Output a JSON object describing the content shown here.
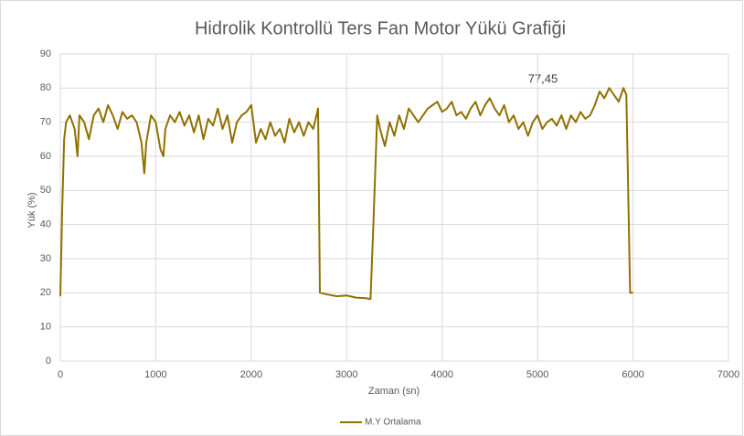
{
  "chart_data": {
    "type": "line",
    "title": "Hidrolik Kontrollü Ters Fan Motor Yükü Grafiği",
    "xlabel": "Zaman (sn)",
    "ylabel": "Yük (%)",
    "annotation": "77,45",
    "x": [
      0,
      20,
      40,
      60,
      100,
      150,
      180,
      200,
      250,
      300,
      350,
      400,
      450,
      500,
      550,
      600,
      650,
      700,
      750,
      800,
      850,
      880,
      900,
      950,
      1000,
      1050,
      1080,
      1100,
      1150,
      1200,
      1250,
      1300,
      1350,
      1400,
      1450,
      1500,
      1550,
      1600,
      1650,
      1700,
      1750,
      1800,
      1850,
      1900,
      1950,
      2000,
      2050,
      2100,
      2150,
      2200,
      2250,
      2300,
      2350,
      2400,
      2450,
      2500,
      2550,
      2600,
      2650,
      2700,
      2720,
      2800,
      2900,
      3000,
      3100,
      3200,
      3250,
      3280,
      3320,
      3350,
      3400,
      3450,
      3500,
      3550,
      3600,
      3650,
      3700,
      3750,
      3800,
      3850,
      3900,
      3950,
      4000,
      4050,
      4100,
      4150,
      4200,
      4250,
      4300,
      4350,
      4400,
      4450,
      4500,
      4550,
      4600,
      4650,
      4700,
      4750,
      4800,
      4850,
      4900,
      4950,
      5000,
      5050,
      5100,
      5150,
      5200,
      5250,
      5300,
      5350,
      5400,
      5450,
      5500,
      5550,
      5600,
      5650,
      5700,
      5750,
      5800,
      5850,
      5900,
      5930,
      5970,
      6000
    ],
    "series": [
      {
        "name": "M.Y Ortalama",
        "color": "#8f7100",
        "values": [
          19,
          45,
          65,
          70,
          72,
          68,
          60,
          72,
          70,
          65,
          72,
          74,
          70,
          75,
          72,
          68,
          73,
          71,
          72,
          70,
          64,
          55,
          64,
          72,
          70,
          62,
          60,
          68,
          72,
          70,
          73,
          69,
          72,
          67,
          72,
          65,
          71,
          69,
          74,
          68,
          72,
          64,
          70,
          72,
          73,
          75,
          64,
          68,
          65,
          70,
          66,
          68,
          64,
          71,
          67,
          70,
          66,
          70,
          68,
          74,
          20,
          19.5,
          19,
          19.2,
          18.6,
          18.4,
          18.2,
          40,
          72,
          68,
          63,
          70,
          66,
          72,
          68,
          74,
          72,
          70,
          72,
          74,
          75,
          76,
          73,
          74,
          76,
          72,
          73,
          71,
          74,
          76,
          72,
          75,
          77,
          74,
          72,
          75,
          70,
          72,
          68,
          70,
          66,
          70,
          72,
          68,
          70,
          71,
          69,
          72,
          68,
          72,
          70,
          73,
          71,
          72,
          75,
          79,
          77,
          80,
          78,
          76,
          80,
          78,
          20,
          20
        ]
      }
    ],
    "xlim": [
      0,
      7000
    ],
    "xticks": [
      0,
      1000,
      2000,
      3000,
      4000,
      5000,
      6000,
      7000
    ],
    "ylim": [
      0,
      90
    ],
    "yticks": [
      0,
      10,
      20,
      30,
      40,
      50,
      60,
      70,
      80,
      90
    ],
    "grid": true,
    "legend": "bottom"
  }
}
